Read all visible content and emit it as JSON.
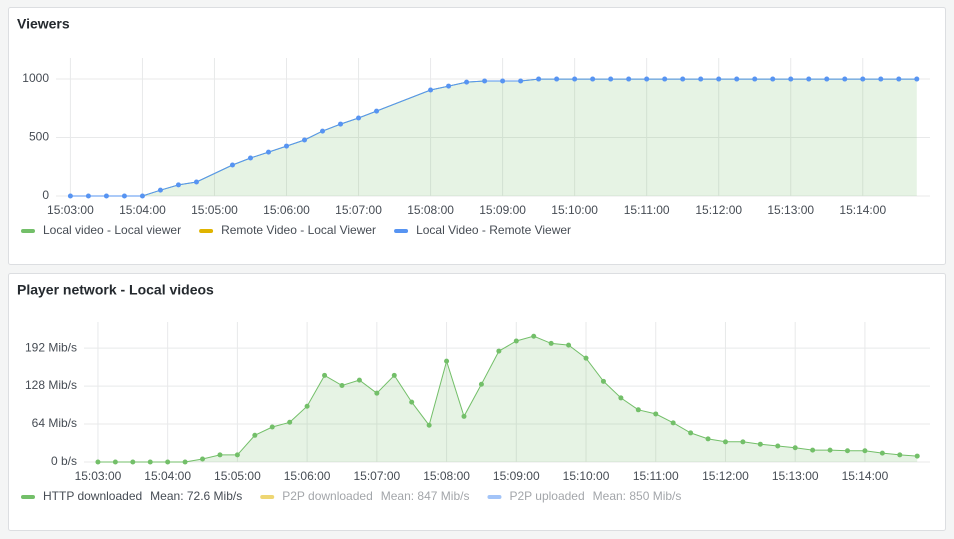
{
  "chart_data": [
    {
      "type": "line",
      "title": "Viewers",
      "x": [
        "15:03:00",
        "15:03:15",
        "15:03:30",
        "15:03:45",
        "15:04:00",
        "15:04:15",
        "15:04:30",
        "15:04:45",
        "15:05:15",
        "15:05:30",
        "15:05:45",
        "15:06:00",
        "15:06:15",
        "15:06:30",
        "15:06:45",
        "15:07:00",
        "15:07:15",
        "15:08:00",
        "15:08:15",
        "15:08:30",
        "15:08:45",
        "15:09:00",
        "15:09:15",
        "15:09:30",
        "15:09:45",
        "15:10:00",
        "15:10:15",
        "15:10:30",
        "15:10:45",
        "15:11:00",
        "15:11:15",
        "15:11:30",
        "15:11:45",
        "15:12:00",
        "15:12:15",
        "15:12:30",
        "15:12:45",
        "15:13:00",
        "15:13:15",
        "15:13:30",
        "15:13:45",
        "15:14:00",
        "15:14:15",
        "15:14:30",
        "15:14:45"
      ],
      "xlim": [
        "15:02:48",
        "15:14:56"
      ],
      "xticks": [
        "15:03:00",
        "15:04:00",
        "15:05:00",
        "15:06:00",
        "15:07:00",
        "15:08:00",
        "15:09:00",
        "15:10:00",
        "15:11:00",
        "15:12:00",
        "15:13:00",
        "15:14:00"
      ],
      "ylim": [
        0,
        1180
      ],
      "yticks": [
        0,
        500,
        1000
      ],
      "grid": true,
      "series": [
        {
          "name": "Local video - Local viewer",
          "color": "#73bf69",
          "style": "area",
          "values": [
            0,
            0,
            0,
            0,
            0,
            50,
            95,
            120,
            265,
            325,
            375,
            427,
            479,
            555,
            615,
            667,
            726,
            906,
            940,
            974,
            983,
            983,
            983,
            1000,
            1000,
            1000,
            1000,
            1000,
            1000,
            1000,
            1000,
            1000,
            1000,
            1000,
            1000,
            1000,
            1000,
            1000,
            1000,
            1000,
            1000,
            1000,
            1000,
            1000,
            1000
          ]
        },
        {
          "name": "Remote Video - Local Viewer",
          "color": "#e0b400",
          "style": "line",
          "values": [
            null,
            null,
            null,
            null,
            null,
            null,
            null,
            null,
            null,
            null,
            null,
            null,
            null,
            null,
            null,
            null,
            null,
            null,
            null,
            null,
            null,
            null,
            null,
            null,
            null,
            null,
            null,
            null,
            null,
            null,
            null,
            null,
            null,
            null,
            null,
            null,
            null,
            null,
            null,
            null,
            null,
            null,
            null,
            null,
            null
          ]
        },
        {
          "name": "Local Video - Remote Viewer",
          "color": "#5794f2",
          "style": "points",
          "values": [
            0,
            0,
            0,
            0,
            0,
            50,
            95,
            120,
            265,
            325,
            375,
            427,
            479,
            555,
            615,
            667,
            726,
            906,
            940,
            974,
            983,
            983,
            983,
            1000,
            1000,
            1000,
            1000,
            1000,
            1000,
            1000,
            1000,
            1000,
            1000,
            1000,
            1000,
            1000,
            1000,
            1000,
            1000,
            1000,
            1000,
            1000,
            1000,
            1000,
            1000
          ]
        }
      ]
    },
    {
      "type": "line",
      "title": "Player network - Local videos",
      "x": [
        "15:03:00",
        "15:03:15",
        "15:03:30",
        "15:03:45",
        "15:04:00",
        "15:04:15",
        "15:04:30",
        "15:04:45",
        "15:05:00",
        "15:05:15",
        "15:05:30",
        "15:05:45",
        "15:06:00",
        "15:06:15",
        "15:06:30",
        "15:06:45",
        "15:07:00",
        "15:07:15",
        "15:07:30",
        "15:07:45",
        "15:08:00",
        "15:08:15",
        "15:08:30",
        "15:08:45",
        "15:09:00",
        "15:09:15",
        "15:09:30",
        "15:09:45",
        "15:10:00",
        "15:10:15",
        "15:10:30",
        "15:10:45",
        "15:11:00",
        "15:11:15",
        "15:11:30",
        "15:11:45",
        "15:12:00",
        "15:12:15",
        "15:12:30",
        "15:12:45",
        "15:13:00",
        "15:13:15",
        "15:13:30",
        "15:13:45",
        "15:14:00",
        "15:14:15",
        "15:14:30",
        "15:14:45"
      ],
      "xlim": [
        "15:02:48",
        "15:14:56"
      ],
      "xticks": [
        "15:03:00",
        "15:04:00",
        "15:05:00",
        "15:06:00",
        "15:07:00",
        "15:08:00",
        "15:09:00",
        "15:10:00",
        "15:11:00",
        "15:12:00",
        "15:13:00",
        "15:14:00"
      ],
      "ylim": [
        0,
        236
      ],
      "yticks": [
        {
          "value": 0,
          "label": "0 b/s"
        },
        {
          "value": 64,
          "label": "64 Mib/s"
        },
        {
          "value": 128,
          "label": "128 Mib/s"
        },
        {
          "value": 192,
          "label": "192 Mib/s"
        }
      ],
      "grid": true,
      "series": [
        {
          "name": "HTTP downloaded",
          "mean": "Mean: 72.6 Mib/s",
          "color": "#73bf69",
          "style": "area-points",
          "values": [
            0,
            0,
            0,
            0,
            0,
            0,
            5,
            12,
            12,
            45,
            59,
            67,
            94,
            146,
            129,
            138,
            116,
            146,
            101,
            62,
            170,
            77,
            131,
            187,
            204,
            212,
            200,
            197,
            175,
            136,
            108,
            88,
            81,
            66,
            49,
            39,
            34,
            34,
            30,
            27,
            24,
            20,
            20,
            19,
            19,
            15,
            12,
            10
          ]
        },
        {
          "name": "P2P downloaded",
          "mean": "Mean: 847 Mib/s",
          "color": "#e0b400",
          "style": "line",
          "hidden": true,
          "values": [
            null,
            null,
            null,
            null,
            null,
            null,
            null,
            null,
            null,
            null,
            null,
            null,
            null,
            null,
            null,
            null,
            null,
            null,
            null,
            null,
            null,
            null,
            null,
            null,
            null,
            null,
            null,
            null,
            null,
            null,
            null,
            null,
            null,
            null,
            null,
            null,
            null,
            null,
            null,
            null,
            null,
            null,
            null,
            null,
            null,
            null,
            null,
            null
          ]
        },
        {
          "name": "P2P uploaded",
          "mean": "Mean: 850 Mib/s",
          "color": "#5794f2",
          "style": "line",
          "hidden": true,
          "values": [
            null,
            null,
            null,
            null,
            null,
            null,
            null,
            null,
            null,
            null,
            null,
            null,
            null,
            null,
            null,
            null,
            null,
            null,
            null,
            null,
            null,
            null,
            null,
            null,
            null,
            null,
            null,
            null,
            null,
            null,
            null,
            null,
            null,
            null,
            null,
            null,
            null,
            null,
            null,
            null,
            null,
            null,
            null,
            null,
            null,
            null,
            null,
            null
          ]
        }
      ]
    }
  ]
}
